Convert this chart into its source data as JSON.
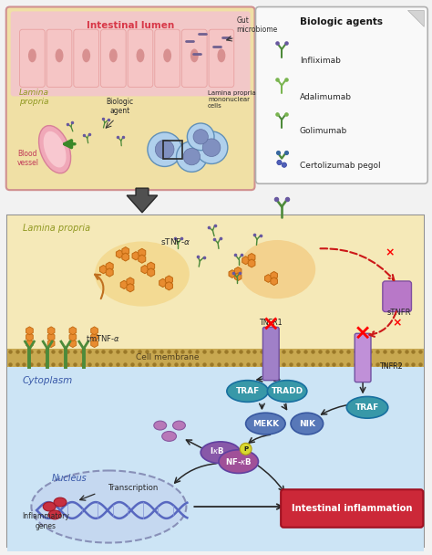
{
  "bg_color": "#f2f2f2",
  "top_panel_border": "#d09090",
  "legend_bg": "#f8f8f8",
  "main_panel_bg": "#ddeef8",
  "lamina_propria_color": "#f5e9b8",
  "cytoplasm_color": "#cce4f5",
  "membrane_tan": "#c8a050",
  "membrane_top": "#d4b060",
  "pink_tissue_color": "#f2c8c8",
  "beige_lamina_color": "#f0e0a5",
  "blue_cell_color": "#a8d0ec",
  "nucleus_color": "#c5d8f0",
  "title_text": "Intestinal lumen",
  "gut_microbiome_text": "Gut\nmicrobiome",
  "lamina_propria_text": "Lamina\npropria",
  "biologic_agent_text": "Biologic\nagent",
  "blood_vessel_text": "Blood\nvessel",
  "mononuclear_cells_text": "Lamina propria\nmononuclear\ncells",
  "legend_title": "Biologic agents",
  "legend_items": [
    "Infliximab",
    "Adalimumab",
    "Golimumab",
    "Certolizumab pegol"
  ],
  "green_ab_color": "#4d8a3a",
  "green_ab_light": "#7ab550",
  "purple_tip_color": "#6858a0",
  "blue_tip_color": "#3868a0",
  "orange_tnf_color": "#e88c30",
  "orange_tnf_edge": "#c06810",
  "receptor_purple": "#a080c8",
  "receptor_edge": "#7050a0",
  "teal_color": "#3898a8",
  "teal_edge": "#1870a0",
  "blue_prot_color": "#5878b8",
  "blue_prot_edge": "#3858a0",
  "purple_prot_color": "#8858a8",
  "purple_prot_edge": "#6040a0",
  "pink_prot_color": "#c878b8",
  "red_inflammation_color": "#cc2838",
  "red_dashed_color": "#cc1818",
  "arrow_dark": "#282828",
  "text_green": "#909820",
  "text_red": "#d83848",
  "text_blue": "#3858a8",
  "text_dark": "#282828"
}
